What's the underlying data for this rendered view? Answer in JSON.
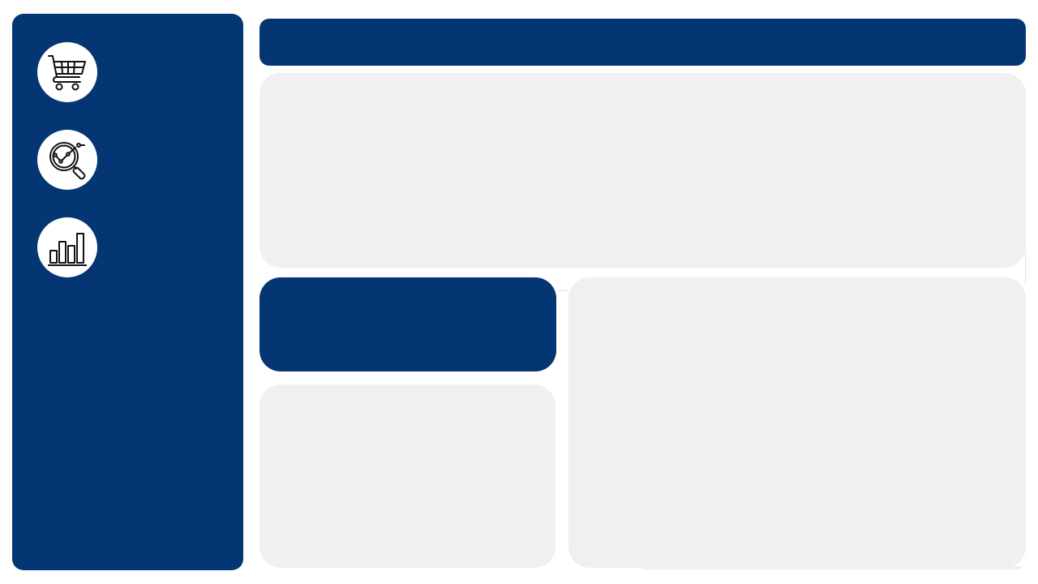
{
  "theme": {
    "primary": "#043673",
    "panel": "#f0f0f0",
    "background": "#ffffff",
    "icon_bg": "#ffffff",
    "icon_stroke": "#111111"
  },
  "sidebar": {
    "items": [
      {
        "icon": "shopping-cart-icon"
      },
      {
        "icon": "magnifier-trend-icon"
      },
      {
        "icon": "bar-chart-icon"
      }
    ]
  }
}
